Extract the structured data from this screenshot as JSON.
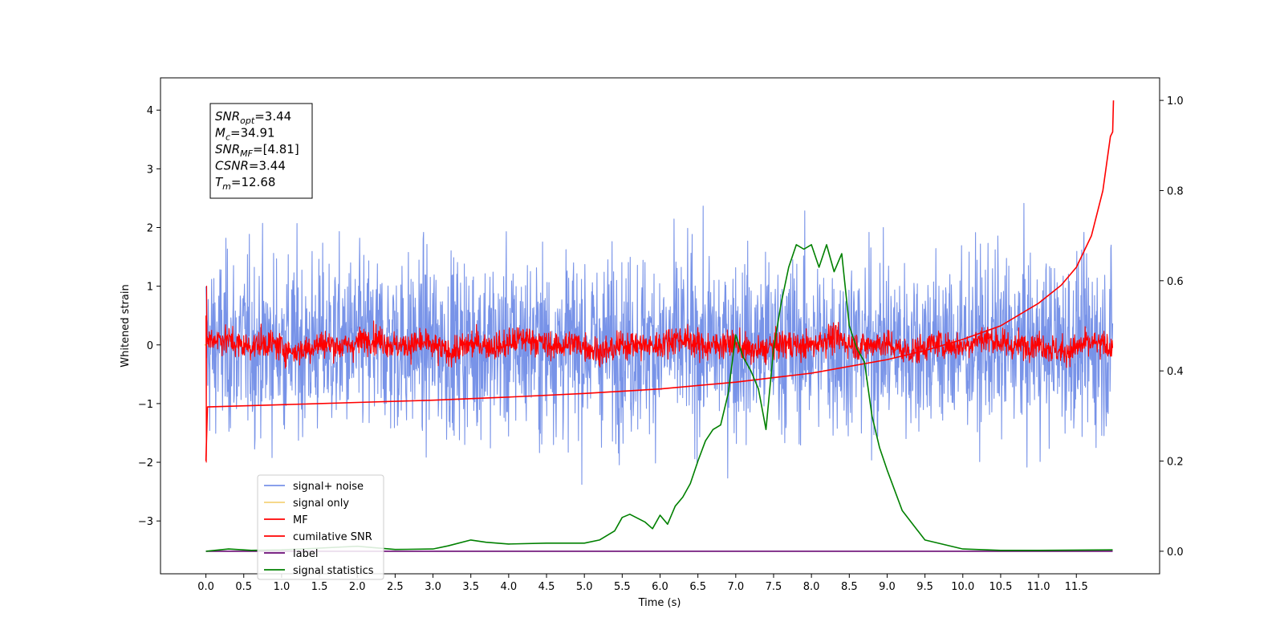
{
  "chart_data": {
    "type": "line",
    "xlabel": "Time (s)",
    "ylabel": "Whitened strain",
    "xlim": [
      -0.6,
      12.6
    ],
    "ylim": [
      -3.9,
      4.55
    ],
    "ylim_right": [
      -0.05,
      1.05
    ],
    "x_ticks": [
      0.0,
      0.5,
      1.0,
      1.5,
      2.0,
      2.5,
      3.0,
      3.5,
      4.0,
      4.5,
      5.0,
      5.5,
      6.0,
      6.5,
      7.0,
      7.5,
      8.0,
      8.5,
      9.0,
      9.5,
      10.0,
      10.5,
      11.0,
      11.5
    ],
    "x_tick_labels": [
      "0.0",
      "0.5",
      "1.0",
      "1.5",
      "2.0",
      "2.5",
      "3.0",
      "3.5",
      "4.0",
      "4.5",
      "5.0",
      "5.5",
      "6.0",
      "6.5",
      "7.0",
      "7.5",
      "8.0",
      "8.5",
      "9.0",
      "9.5",
      "10.0",
      "10.5",
      "11.0",
      "11.5"
    ],
    "y_ticks": [
      -3,
      -2,
      -1,
      0,
      1,
      2,
      3,
      4
    ],
    "y_tick_labels": [
      "−3",
      "−2",
      "−1",
      "0",
      "1",
      "2",
      "3",
      "4"
    ],
    "y_right_ticks": [
      0.0,
      0.2,
      0.4,
      0.6,
      0.8,
      1.0
    ],
    "y_right_tick_labels": [
      "0.0",
      "0.2",
      "0.4",
      "0.6",
      "0.8",
      "1.0"
    ],
    "grid": false,
    "legend_position": "lower-left",
    "annotation": [
      {
        "sym": "SNR",
        "sub": "opt",
        "value": "=3.44"
      },
      {
        "sym": "M",
        "sub": "c",
        "value": "=34.91"
      },
      {
        "sym": "SNR",
        "sub": "MF",
        "value": "=[4.81]"
      },
      {
        "sym": "CSNR",
        "sub": "",
        "value": "=3.44"
      },
      {
        "sym": "T",
        "sub": "m",
        "value": "=12.68"
      }
    ],
    "series": [
      {
        "name": "signal+ noise",
        "color": "#7893e8",
        "style": "noise",
        "amplitude_std": 0.75,
        "x_range": [
          0,
          11.98
        ]
      },
      {
        "name": "signal only",
        "color": "#f5d27a",
        "style": "flat",
        "y": 0
      },
      {
        "name": "MF",
        "color": "#ff0000",
        "style": "noise",
        "amplitude_std": 0.17,
        "x_range": [
          0,
          11.98
        ]
      },
      {
        "name": "cumilative SNR",
        "color": "#ff0000",
        "axis": "right",
        "x": [
          0.0,
          0.02,
          1.0,
          2.0,
          3.0,
          4.0,
          5.0,
          6.0,
          7.0,
          7.5,
          8.0,
          8.5,
          9.0,
          9.5,
          10.0,
          10.5,
          11.0,
          11.3,
          11.5,
          11.7,
          11.85,
          11.95,
          11.98,
          11.99
        ],
        "y": [
          0.2,
          0.32,
          0.325,
          0.33,
          0.335,
          0.342,
          0.35,
          0.36,
          0.375,
          0.385,
          0.395,
          0.41,
          0.425,
          0.445,
          0.47,
          0.5,
          0.55,
          0.59,
          0.63,
          0.7,
          0.8,
          0.92,
          0.93,
          1.0
        ]
      },
      {
        "name": "label",
        "color": "#6a0a74",
        "style": "flat",
        "axis": "right",
        "y": 0.0,
        "x_range": [
          0,
          11.98
        ]
      },
      {
        "name": "signal statistics",
        "color": "#008000",
        "axis": "right",
        "x": [
          0.0,
          0.3,
          0.6,
          1.0,
          1.5,
          2.0,
          2.5,
          3.0,
          3.2,
          3.5,
          3.7,
          4.0,
          4.5,
          5.0,
          5.2,
          5.4,
          5.5,
          5.6,
          5.8,
          5.9,
          6.0,
          6.1,
          6.2,
          6.3,
          6.4,
          6.5,
          6.6,
          6.7,
          6.8,
          6.9,
          7.0,
          7.1,
          7.2,
          7.3,
          7.4,
          7.5,
          7.6,
          7.7,
          7.8,
          7.9,
          8.0,
          8.1,
          8.2,
          8.3,
          8.4,
          8.5,
          8.6,
          8.7,
          8.8,
          8.9,
          9.0,
          9.2,
          9.5,
          10.0,
          10.5,
          11.0,
          11.98
        ],
        "y": [
          0.0,
          0.005,
          0.002,
          0.003,
          0.007,
          0.011,
          0.004,
          0.005,
          0.012,
          0.025,
          0.02,
          0.016,
          0.018,
          0.018,
          0.025,
          0.045,
          0.075,
          0.082,
          0.065,
          0.05,
          0.08,
          0.06,
          0.1,
          0.12,
          0.15,
          0.2,
          0.245,
          0.27,
          0.28,
          0.35,
          0.48,
          0.43,
          0.4,
          0.36,
          0.27,
          0.45,
          0.55,
          0.63,
          0.68,
          0.67,
          0.68,
          0.63,
          0.68,
          0.62,
          0.66,
          0.5,
          0.45,
          0.42,
          0.3,
          0.23,
          0.18,
          0.09,
          0.025,
          0.005,
          0.002,
          0.002,
          0.003
        ]
      }
    ]
  }
}
